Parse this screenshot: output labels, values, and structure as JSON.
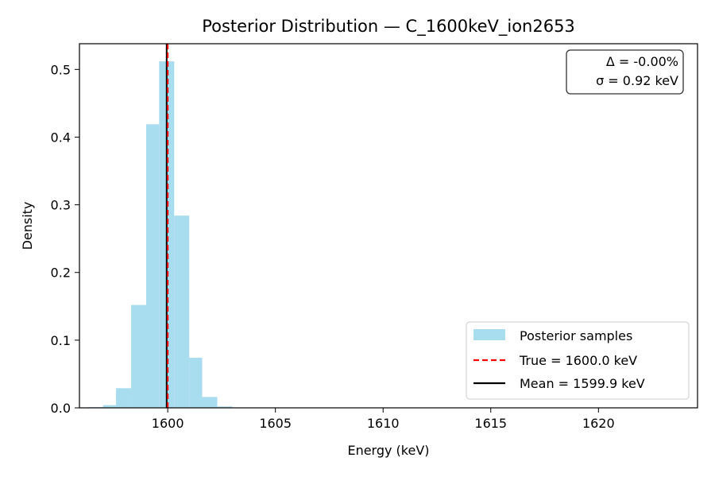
{
  "chart_data": {
    "type": "histogram",
    "title": "Posterior Distribution — C_1600keV_ion2653",
    "xlabel": "Energy (keV)",
    "ylabel": "Density",
    "xlim": [
      1595.9,
      1624.6
    ],
    "ylim": [
      0,
      0.538
    ],
    "xticks": [
      1600,
      1605,
      1610,
      1615,
      1620
    ],
    "yticks": [
      0.0,
      0.1,
      0.2,
      0.3,
      0.4,
      0.5
    ],
    "xtick_labels": [
      "1600",
      "1605",
      "1610",
      "1615",
      "1620"
    ],
    "ytick_labels": [
      "0.0",
      "0.1",
      "0.2",
      "0.3",
      "0.4",
      "0.5"
    ],
    "bins": [
      {
        "x0": 1596.3,
        "x1": 1597.0,
        "density": 0.001
      },
      {
        "x0": 1597.0,
        "x1": 1597.6,
        "density": 0.004
      },
      {
        "x0": 1597.6,
        "x1": 1598.3,
        "density": 0.029
      },
      {
        "x0": 1598.3,
        "x1": 1599.0,
        "density": 0.152
      },
      {
        "x0": 1599.0,
        "x1": 1599.6,
        "density": 0.419
      },
      {
        "x0": 1599.6,
        "x1": 1600.3,
        "density": 0.512
      },
      {
        "x0": 1600.3,
        "x1": 1601.0,
        "density": 0.284
      },
      {
        "x0": 1601.0,
        "x1": 1601.6,
        "density": 0.074
      },
      {
        "x0": 1601.6,
        "x1": 1602.3,
        "density": 0.016
      },
      {
        "x0": 1602.3,
        "x1": 1603.0,
        "density": 0.002
      }
    ],
    "series": [
      {
        "name": "Posterior samples",
        "kind": "histogram",
        "color": "#a8dcef"
      },
      {
        "name": "True = 1600.0 keV",
        "kind": "vline",
        "value": 1600.0,
        "color": "#ff0000",
        "style": "dashed"
      },
      {
        "name": "Mean = 1599.9 keV",
        "kind": "vline",
        "value": 1599.95,
        "color": "#000000",
        "style": "solid"
      }
    ],
    "annotation": {
      "line1": "Δ = -0.00%",
      "line2": "σ = 0.92 keV",
      "placement": "top-right"
    },
    "legend_placement": "lower-right",
    "grid": false
  }
}
